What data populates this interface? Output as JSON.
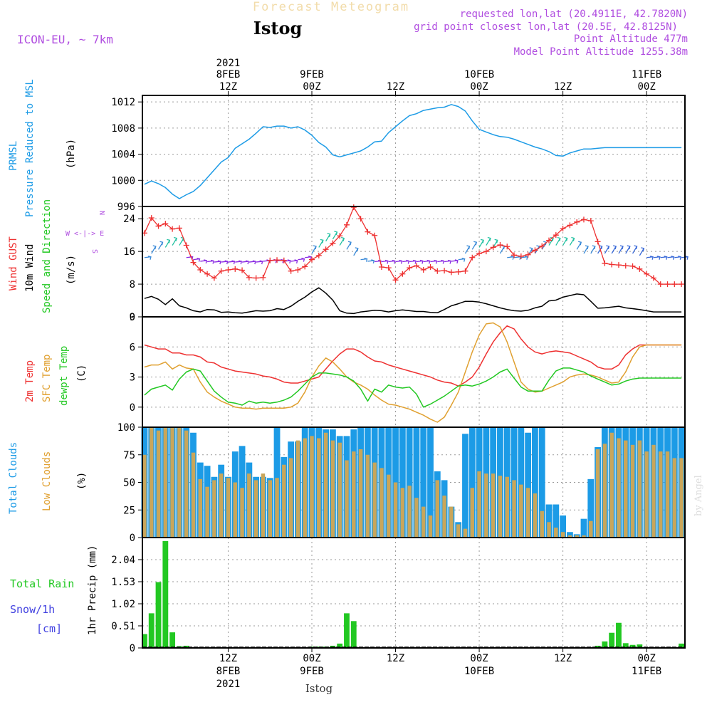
{
  "header": {
    "faded_title": "Forecast Meteogram",
    "location": "Istog",
    "model": "ICON-EU, ~ 7km",
    "requested": "requested lon,lat (20.4911E, 42.7820N)",
    "gridpoint": "grid point closest lon,lat (20.5E, 42.8125N)",
    "point_alt": "Point Altitude 477m",
    "model_alt": "Model Point Altitude 1255.38m"
  },
  "footer": {
    "location": "Istog",
    "watermark": "by Angel"
  },
  "colors": {
    "pressure": "#1c9be6",
    "gust": "#ee3030",
    "wind": "#000000",
    "t2m": "#ee3030",
    "sfc": "#e0a030",
    "dew": "#22c822",
    "clouds_total": "#1c9be6",
    "clouds_low": "#c9a65a",
    "rain": "#22c822",
    "snow": "#4040e0",
    "header_purple": "#b04ee0"
  },
  "top_axis": [
    {
      "h": 12,
      "l1": "12Z",
      "l2": "8FEB",
      "l3": "2021"
    },
    {
      "h": 24,
      "l1": "00Z",
      "l2": "9FEB",
      "l3": ""
    },
    {
      "h": 36,
      "l1": "12Z",
      "l2": "",
      "l3": ""
    },
    {
      "h": 48,
      "l1": "00Z",
      "l2": "10FEB",
      "l3": ""
    },
    {
      "h": 60,
      "l1": "12Z",
      "l2": "",
      "l3": ""
    },
    {
      "h": 72,
      "l1": "00Z",
      "l2": "11FEB",
      "l3": ""
    }
  ],
  "bottom_axis": [
    {
      "h": 12,
      "l1": "12Z",
      "l2": "8FEB",
      "l3": "2021"
    },
    {
      "h": 24,
      "l1": "00Z",
      "l2": "9FEB",
      "l3": ""
    },
    {
      "h": 36,
      "l1": "12Z",
      "l2": "",
      "l3": ""
    },
    {
      "h": 48,
      "l1": "00Z",
      "l2": "10FEB",
      "l3": ""
    },
    {
      "h": 60,
      "l1": "12Z",
      "l2": "",
      "l3": ""
    },
    {
      "h": 72,
      "l1": "00Z",
      "l2": "11FEB",
      "l3": ""
    }
  ],
  "chart_data": [
    {
      "type": "line",
      "title": "PRMSL Pressure Reduced to MSL",
      "ylabel": "(hPa)",
      "ylabel_lines": [
        "PRMSL",
        "Pressure Reduced to MSL"
      ],
      "x_hours": [
        0,
        1,
        2,
        3,
        4,
        5,
        6,
        7,
        8,
        9,
        10,
        11,
        12,
        13,
        14,
        15,
        16,
        17,
        18,
        19,
        20,
        21,
        22,
        23,
        24,
        25,
        26,
        27,
        28,
        29,
        30,
        31,
        32,
        33,
        34,
        35,
        36,
        37,
        38,
        39,
        40,
        41,
        42,
        43,
        44,
        45,
        46,
        47,
        48,
        49,
        50,
        51,
        52,
        53,
        54,
        55,
        56,
        57,
        58,
        59,
        60,
        61,
        62,
        63,
        64,
        65,
        66,
        67,
        68,
        69,
        70,
        71,
        72,
        73,
        74,
        75,
        76,
        77
      ],
      "ylim": [
        996,
        1013
      ],
      "yticks": [
        996,
        1000,
        1004,
        1008,
        1012
      ],
      "series": [
        {
          "name": "PRMSL",
          "values": [
            999.4,
            999.9,
            999.5,
            998.9,
            997.9,
            997.2,
            997.8,
            998.3,
            999.2,
            1000.4,
            1001.6,
            1002.8,
            1003.5,
            1004.9,
            1005.6,
            1006.3,
            1007.2,
            1008.2,
            1008.1,
            1008.3,
            1008.3,
            1008.0,
            1008.2,
            1007.7,
            1006.9,
            1005.8,
            1005.1,
            1003.9,
            1003.6,
            1003.9,
            1004.2,
            1004.5,
            1005.1,
            1005.9,
            1006.0,
            1007.3,
            1008.2,
            1009.1,
            1009.9,
            1010.2,
            1010.7,
            1010.9,
            1011.1,
            1011.2,
            1011.6,
            1011.3,
            1010.6,
            1009.1,
            1007.8,
            1007.4,
            1007.0,
            1006.7,
            1006.6,
            1006.3,
            1005.9,
            1005.5,
            1005.1,
            1004.8,
            1004.4,
            1003.8,
            1003.7,
            1004.2,
            1004.5,
            1004.8,
            1004.8,
            1004.9,
            1005.0,
            1005.0,
            1005.0,
            1005.0,
            1005.0,
            1005.0,
            1005.0,
            1005.0,
            1005.0,
            1005.0,
            1005.0,
            1005.0
          ]
        }
      ]
    },
    {
      "type": "line",
      "title": "Wind GUST / 10m Wind Speed and Direction",
      "ylabel": "(m/s)",
      "ylabel_lines": [
        "Wind GUST",
        "10m Wind",
        "Speed and Direction"
      ],
      "compass": "N | W <-|-> E | S",
      "compass_n": "N",
      "compass_w": "W <-|-> E",
      "compass_s": "S",
      "ylim": [
        0,
        27
      ],
      "yticks": [
        0,
        8,
        16,
        24
      ],
      "series": [
        {
          "name": "Wind GUST",
          "values": [
            20.5,
            24.2,
            22.2,
            22.8,
            21.5,
            21.7,
            17.5,
            13.3,
            11.5,
            10.5,
            9.5,
            11.2,
            11.5,
            11.7,
            11.4,
            9.6,
            9.5,
            9.6,
            13.8,
            13.9,
            13.8,
            11.2,
            11.5,
            12.3,
            14.0,
            15.0,
            16.5,
            18.0,
            19.8,
            22.5,
            26.8,
            24.0,
            20.8,
            19.9,
            12.2,
            12.0,
            9.0,
            10.5,
            12.0,
            12.5,
            11.5,
            12.2,
            11.2,
            11.3,
            10.9,
            11.0,
            11.2,
            14.5,
            15.5,
            16.0,
            17.0,
            17.6,
            17.2,
            15.1,
            14.8,
            15.2,
            16.3,
            17.3,
            18.7,
            20.0,
            21.6,
            22.4,
            23.2,
            23.8,
            23.5,
            18.4,
            13.1,
            12.8,
            12.7,
            12.5,
            12.4,
            11.7,
            10.5,
            9.5,
            8.0,
            8.0,
            8.0,
            8.0
          ]
        },
        {
          "name": "10m Wind",
          "values": [
            4.5,
            5.0,
            4.3,
            3.0,
            4.4,
            2.7,
            2.2,
            1.5,
            1.2,
            1.8,
            1.7,
            1.1,
            1.2,
            1.0,
            0.9,
            1.2,
            1.5,
            1.4,
            1.5,
            2.0,
            1.8,
            2.6,
            3.8,
            4.8,
            6.1,
            7.1,
            5.8,
            4.1,
            1.5,
            0.9,
            0.8,
            1.2,
            1.4,
            1.6,
            1.5,
            1.2,
            1.5,
            1.7,
            1.5,
            1.3,
            1.3,
            1.1,
            1.0,
            1.8,
            2.7,
            3.2,
            3.8,
            3.8,
            3.6,
            3.2,
            2.7,
            2.2,
            1.8,
            1.5,
            1.4,
            1.6,
            2.2,
            2.6,
            3.9,
            4.1,
            4.8,
            5.2,
            5.6,
            5.4,
            3.8,
            2.1,
            2.2,
            2.4,
            2.6,
            2.2,
            2.0,
            1.8,
            1.5,
            1.2,
            1.2,
            1.2,
            1.2,
            1.2
          ]
        }
      ],
      "arrow_heights": [
        14.5,
        15.5,
        16.5,
        17,
        17.5,
        17.5,
        14.5,
        14.0,
        13.6,
        13.5,
        13.4,
        13.4,
        13.4,
        13.4,
        13.4,
        13.4,
        13.4,
        13.6,
        13.7,
        13.7,
        13.6,
        13.6,
        14.0,
        14.5,
        15.5,
        17.0,
        18.5,
        19.0,
        17.5,
        16.5,
        15.0,
        14.0,
        13.6,
        13.5,
        13.5,
        13.5,
        13.5,
        13.5,
        13.5,
        13.5,
        13.5,
        13.5,
        13.5,
        13.5,
        13.6,
        14.0,
        15.5,
        16.5,
        17.0,
        17.5,
        17.0,
        15.5,
        14.5,
        14.5,
        14.5,
        15.0,
        15.5,
        16.5,
        17.5,
        17.5,
        17.5,
        17.5,
        16.5,
        15.5,
        15.5,
        15.5,
        15.5,
        15.5,
        15.5,
        15.5,
        15.5,
        15.0,
        14.5,
        14.5,
        14.5,
        14.5,
        14.5,
        14.5
      ]
    },
    {
      "type": "line",
      "title": "2m Temp / SFC Temp / dewpt Temp",
      "ylabel": "(C)",
      "ylabel_lines": [
        "2m Temp",
        "SFC Temp",
        "dewpt Temp"
      ],
      "ylim": [
        -2,
        9
      ],
      "yticks": [
        0,
        3,
        6,
        9
      ],
      "series": [
        {
          "name": "2m Temp",
          "values": [
            6.2,
            6.0,
            5.8,
            5.8,
            5.4,
            5.4,
            5.2,
            5.2,
            5.0,
            4.5,
            4.4,
            4.0,
            3.8,
            3.6,
            3.5,
            3.4,
            3.3,
            3.1,
            3.0,
            2.8,
            2.5,
            2.4,
            2.4,
            2.6,
            2.8,
            3.0,
            3.8,
            4.6,
            5.3,
            5.8,
            5.8,
            5.5,
            5.0,
            4.6,
            4.5,
            4.2,
            4.0,
            3.8,
            3.6,
            3.4,
            3.2,
            3.0,
            2.7,
            2.5,
            2.4,
            2.1,
            2.5,
            3.0,
            4.0,
            5.3,
            6.5,
            7.4,
            8.1,
            7.8,
            6.8,
            6.0,
            5.5,
            5.3,
            5.5,
            5.6,
            5.5,
            5.4,
            5.1,
            4.8,
            4.5,
            4.0,
            3.8,
            3.8,
            4.2,
            5.2,
            5.8,
            6.2,
            6.2,
            6.2,
            6.2,
            6.2,
            6.2,
            6.2
          ]
        },
        {
          "name": "SFC Temp",
          "values": [
            4.0,
            4.2,
            4.2,
            4.5,
            3.8,
            4.2,
            3.9,
            3.8,
            2.5,
            1.5,
            1.0,
            0.6,
            0.3,
            0.0,
            -0.1,
            -0.1,
            -0.2,
            -0.1,
            -0.1,
            -0.1,
            -0.1,
            0.0,
            0.4,
            1.5,
            3.0,
            4.1,
            4.9,
            4.5,
            3.8,
            3.0,
            2.5,
            2.2,
            1.8,
            1.2,
            0.7,
            0.3,
            0.2,
            0.0,
            -0.2,
            -0.5,
            -0.8,
            -1.2,
            -1.5,
            -1.0,
            0.2,
            1.5,
            3.5,
            5.5,
            7.2,
            8.3,
            8.4,
            8.0,
            6.5,
            4.5,
            2.5,
            1.8,
            1.5,
            1.6,
            1.9,
            2.2,
            2.5,
            3.0,
            3.2,
            3.3,
            3.2,
            3.0,
            2.7,
            2.4,
            2.5,
            3.5,
            5.0,
            6.0,
            6.2,
            6.2,
            6.2,
            6.2,
            6.2,
            6.2
          ]
        },
        {
          "name": "dewpt Temp",
          "values": [
            1.2,
            1.8,
            2.0,
            2.2,
            1.7,
            2.8,
            3.5,
            3.8,
            3.6,
            2.6,
            1.6,
            1.0,
            0.5,
            0.4,
            0.2,
            0.6,
            0.4,
            0.5,
            0.4,
            0.5,
            0.7,
            1.0,
            1.6,
            2.3,
            3.0,
            3.4,
            3.4,
            3.3,
            3.2,
            3.0,
            2.6,
            1.8,
            0.6,
            1.8,
            1.5,
            2.2,
            2.0,
            1.9,
            2.0,
            1.3,
            0.0,
            0.3,
            0.7,
            1.1,
            1.6,
            2.1,
            2.2,
            2.1,
            2.3,
            2.6,
            3.0,
            3.5,
            3.8,
            2.9,
            2.0,
            1.6,
            1.6,
            1.6,
            2.7,
            3.6,
            3.9,
            3.9,
            3.7,
            3.5,
            3.1,
            2.8,
            2.5,
            2.2,
            2.3,
            2.6,
            2.8,
            2.9,
            2.9,
            2.9,
            2.9,
            2.9,
            2.9,
            2.9
          ]
        }
      ]
    },
    {
      "type": "bar",
      "title": "Total Clouds / Low Clouds",
      "ylabel": "(%)",
      "ylabel_lines": [
        "Total Clouds",
        "Low Clouds"
      ],
      "ylim": [
        0,
        100
      ],
      "yticks": [
        0,
        25,
        50,
        75,
        100
      ],
      "series": [
        {
          "name": "Total Clouds",
          "values": [
            100,
            100,
            100,
            100,
            100,
            100,
            100,
            95,
            68,
            65,
            55,
            66,
            55,
            78,
            83,
            68,
            55,
            55,
            54,
            100,
            73,
            87,
            87,
            100,
            100,
            100,
            98,
            98,
            92,
            92,
            98,
            100,
            100,
            100,
            100,
            100,
            100,
            100,
            100,
            100,
            100,
            100,
            60,
            52,
            28,
            14,
            94,
            100,
            100,
            100,
            100,
            100,
            100,
            100,
            100,
            95,
            100,
            100,
            30,
            30,
            20,
            5,
            3,
            17,
            53,
            82,
            100,
            100,
            100,
            100,
            100,
            100,
            100,
            100,
            100,
            100,
            100,
            100
          ]
        },
        {
          "name": "Low Clouds",
          "values": [
            75,
            100,
            97,
            100,
            100,
            100,
            97,
            77,
            53,
            46,
            52,
            58,
            54,
            50,
            45,
            58,
            52,
            58,
            52,
            54,
            66,
            72,
            88,
            90,
            92,
            90,
            95,
            88,
            86,
            70,
            78,
            80,
            75,
            68,
            63,
            57,
            50,
            45,
            47,
            36,
            28,
            20,
            52,
            38,
            28,
            12,
            8,
            45,
            60,
            58,
            58,
            56,
            55,
            52,
            48,
            45,
            40,
            24,
            14,
            9,
            5,
            2,
            2,
            2,
            15,
            80,
            85,
            95,
            90,
            88,
            84,
            88,
            78,
            84,
            78,
            78,
            72,
            72
          ]
        }
      ]
    },
    {
      "type": "bar",
      "title": "1hr Precip (mm)",
      "ylabel": "1hr Precip (mm)",
      "ylabel_lines": [
        "Total  Rain",
        "Snow/1h",
        "[cm]"
      ],
      "ylim": [
        0,
        2.55
      ],
      "yticks": [
        0,
        0.51,
        1.02,
        1.53,
        2.04
      ],
      "ytick_labels": [
        "0",
        "0.51",
        "1.02",
        "1.53",
        "2.04"
      ],
      "series": [
        {
          "name": "Total Rain",
          "values": [
            0.32,
            0.8,
            1.52,
            2.47,
            0.36,
            0.04,
            0.05,
            0,
            0,
            0,
            0,
            0,
            0,
            0,
            0,
            0,
            0,
            0,
            0,
            0,
            0,
            0,
            0,
            0,
            0.03,
            0.03,
            0.03,
            0.05,
            0.1,
            0.8,
            0.62,
            0,
            0,
            0,
            0,
            0,
            0,
            0,
            0,
            0,
            0,
            0,
            0,
            0,
            0,
            0,
            0,
            0,
            0,
            0,
            0,
            0,
            0,
            0,
            0,
            0,
            0,
            0,
            0,
            0,
            0,
            0,
            0,
            0,
            0,
            0.05,
            0.15,
            0.35,
            0.58,
            0.11,
            0.07,
            0.08,
            0,
            0,
            0,
            0,
            0,
            0.1
          ]
        },
        {
          "name": "Snow/1h",
          "values": [
            0,
            0,
            0,
            0,
            0,
            0,
            0,
            0,
            0,
            0,
            0,
            0,
            0,
            0,
            0,
            0,
            0,
            0,
            0,
            0,
            0,
            0,
            0,
            0,
            0,
            0,
            0,
            0,
            0,
            0,
            0,
            0,
            0,
            0,
            0,
            0,
            0,
            0,
            0,
            0,
            0,
            0,
            0,
            0,
            0,
            0,
            0,
            0,
            0,
            0,
            0,
            0,
            0,
            0,
            0,
            0,
            0,
            0,
            0,
            0,
            0,
            0,
            0,
            0,
            0,
            0,
            0,
            0,
            0,
            0,
            0,
            0,
            0,
            0,
            0,
            0,
            0,
            0
          ]
        }
      ]
    }
  ]
}
